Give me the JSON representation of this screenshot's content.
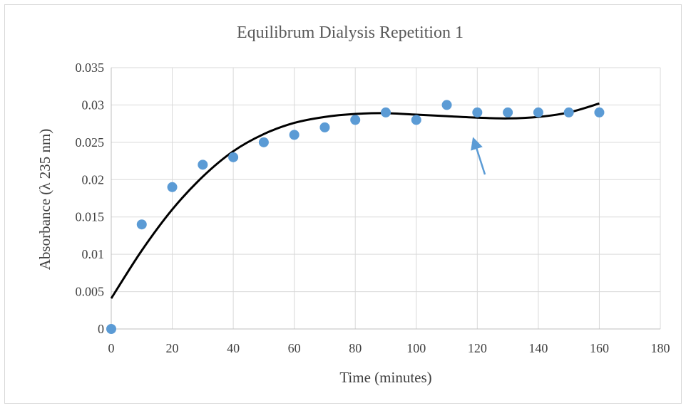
{
  "chart_data": {
    "type": "scatter",
    "title": "Equilibrum Dialysis Repetition 1",
    "xlabel": "Time (minutes)",
    "ylabel": "Absorbance (λ 235 nm)",
    "xlim": [
      0,
      180
    ],
    "ylim": [
      0,
      0.035
    ],
    "x_ticks": [
      "0",
      "20",
      "40",
      "60",
      "80",
      "100",
      "120",
      "140",
      "160",
      "180"
    ],
    "y_ticks": [
      "0",
      "0.005",
      "0.01",
      "0.015",
      "0.02",
      "0.025",
      "0.03",
      "0.035"
    ],
    "grid": true,
    "legend": "none",
    "series": [
      {
        "x": [
          0,
          10,
          20,
          30,
          40,
          50,
          60,
          70,
          80,
          90,
          100,
          110,
          120,
          130,
          140,
          150,
          160
        ],
        "y": [
          0,
          0.014,
          0.019,
          0.022,
          0.023,
          0.025,
          0.026,
          0.027,
          0.028,
          0.029,
          0.028,
          0.03,
          0.029,
          0.029,
          0.029,
          0.029,
          0.029
        ],
        "color": "#5b9bd5"
      }
    ],
    "trendline": {
      "type": "polynomial",
      "color": "#000000",
      "x": [
        0,
        10,
        20,
        30,
        40,
        50,
        60,
        70,
        80,
        90,
        100,
        110,
        120,
        130,
        140,
        150,
        160
      ],
      "y": [
        0.0041,
        0.0105,
        0.016,
        0.0204,
        0.0238,
        0.0261,
        0.0276,
        0.0284,
        0.0288,
        0.0289,
        0.0287,
        0.0285,
        0.0283,
        0.0282,
        0.0284,
        0.029,
        0.0302
      ]
    },
    "annotation": {
      "type": "arrow",
      "color": "#5b9bd5",
      "from": [
        122.5,
        0.0207
      ],
      "to": [
        118.8,
        0.0254
      ]
    }
  }
}
